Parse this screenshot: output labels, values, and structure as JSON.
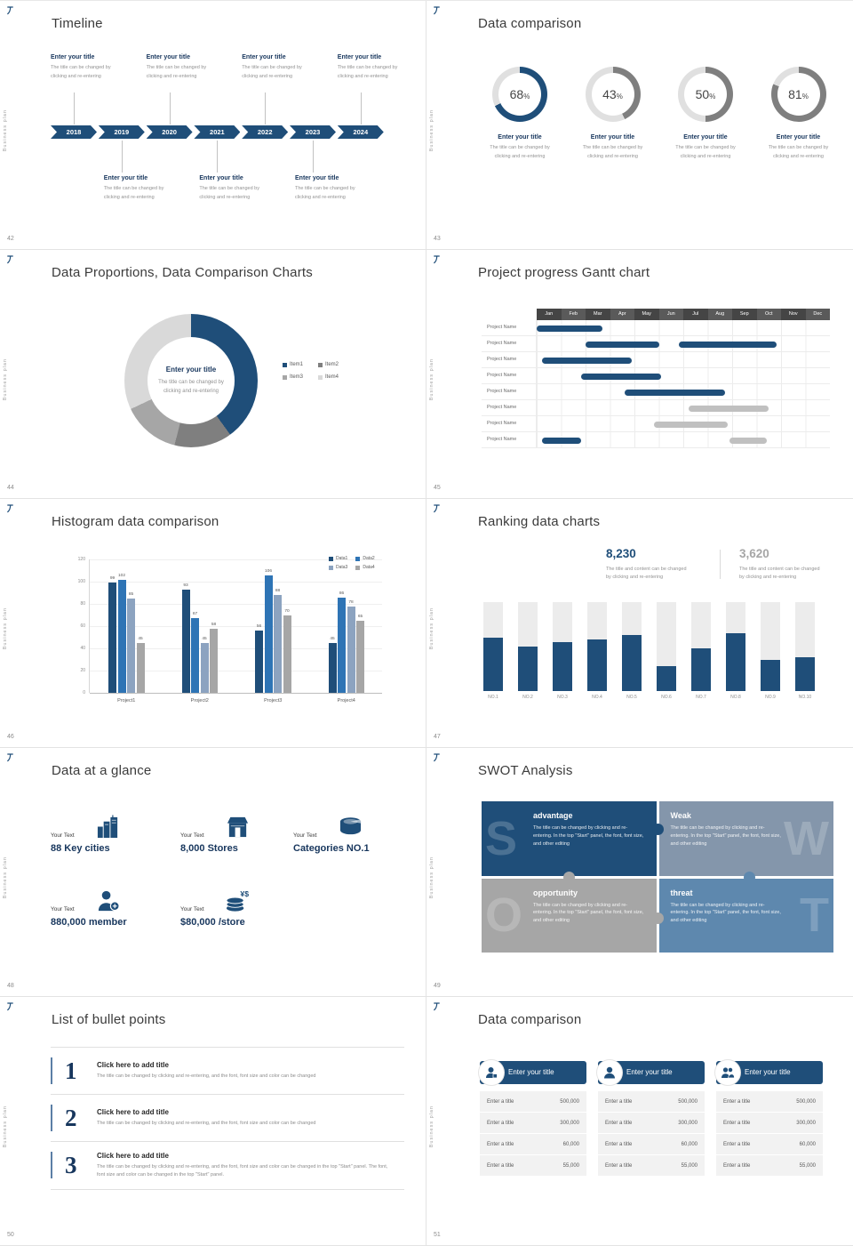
{
  "common": {
    "sidebar_text": "Business plan",
    "entry_title": "Enter your title",
    "entry_desc_line1": "The title can be changed by",
    "entry_desc_line2": "clicking and re-entering",
    "brand_color": "#1F4E79"
  },
  "slides": {
    "timeline": {
      "page": "42",
      "title": "Timeline",
      "years": [
        "2018",
        "2019",
        "2020",
        "2021",
        "2022",
        "2023",
        "2024"
      ],
      "top_indices": [
        0,
        2,
        4,
        6
      ],
      "bottom_indices": [
        1,
        3,
        5
      ]
    },
    "donut_comparison": {
      "page": "43",
      "title": "Data comparison",
      "chart": {
        "type": "donut-set",
        "track_color": "#E0E0E0",
        "items": [
          {
            "value": 68,
            "color": "#1F4E79"
          },
          {
            "value": 43,
            "color": "#7F7F7F"
          },
          {
            "value": 50,
            "color": "#7F7F7F"
          },
          {
            "value": 81,
            "color": "#7F7F7F"
          }
        ]
      }
    },
    "proportions": {
      "page": "44",
      "title": "Data Proportions, Data Comparison Charts",
      "center_title": "Enter your title",
      "chart": {
        "type": "pie",
        "segments": [
          {
            "label": "Item1",
            "value": 40,
            "color": "#1F4E79"
          },
          {
            "label": "Item2",
            "value": 14,
            "color": "#7F7F7F"
          },
          {
            "label": "Item3",
            "value": 14,
            "color": "#A6A6A6"
          },
          {
            "label": "Item4",
            "value": 32,
            "color": "#D9D9D9"
          }
        ]
      }
    },
    "gantt": {
      "page": "45",
      "title": "Project progress Gantt chart",
      "months": [
        "Jan",
        "Feb",
        "Mar",
        "Apr",
        "May",
        "Jun",
        "Jul",
        "Aug",
        "Sep",
        "Oct",
        "Nov",
        "Dec"
      ],
      "row_label": "Project Name",
      "rows": [
        {
          "bars": [
            {
              "start": 0,
              "end": 2.7,
              "color": "#1F4E79"
            }
          ]
        },
        {
          "bars": [
            {
              "start": 2,
              "end": 5,
              "color": "#1F4E79"
            },
            {
              "start": 5.8,
              "end": 9.8,
              "color": "#1F4E79"
            }
          ]
        },
        {
          "bars": [
            {
              "start": 0.2,
              "end": 3.9,
              "color": "#1F4E79"
            }
          ]
        },
        {
          "bars": [
            {
              "start": 1.8,
              "end": 5.1,
              "color": "#1F4E79"
            }
          ]
        },
        {
          "bars": [
            {
              "start": 3.6,
              "end": 7.7,
              "color": "#1F4E79"
            }
          ]
        },
        {
          "bars": [
            {
              "start": 6.2,
              "end": 9.5,
              "color": "#C0C0C0"
            }
          ]
        },
        {
          "bars": [
            {
              "start": 4.8,
              "end": 7.8,
              "color": "#C0C0C0"
            }
          ]
        },
        {
          "bars": [
            {
              "start": 0.2,
              "end": 1.8,
              "color": "#1F4E79"
            },
            {
              "start": 7.9,
              "end": 9.4,
              "color": "#C0C0C0"
            }
          ]
        }
      ]
    },
    "histogram": {
      "page": "46",
      "title": "Histogram data comparison",
      "chart": {
        "type": "bar",
        "categories": [
          "Project1",
          "Project2",
          "Project3",
          "Project4"
        ],
        "series": [
          {
            "name": "Data1",
            "color": "#1F4E79",
            "values": [
              99,
              93,
              56,
              45
            ]
          },
          {
            "name": "Data2",
            "color": "#2E74B5",
            "values": [
              102,
              67,
              106,
              86
            ]
          },
          {
            "name": "Data3",
            "color": "#8CA3C0",
            "values": [
              85,
              45,
              88,
              78
            ]
          },
          {
            "name": "Data4",
            "color": "#A6A6A6",
            "values": [
              45,
              58,
              70,
              65
            ]
          }
        ],
        "ylim": [
          0,
          120
        ],
        "yticks": [
          0,
          20,
          40,
          60,
          80,
          100,
          120
        ]
      }
    },
    "ranking": {
      "page": "47",
      "title": "Ranking data charts",
      "stat1": {
        "value": "8,230",
        "desc1": "The title and content can be changed",
        "desc2": "by clicking and re-entering",
        "color": "#1F4E79"
      },
      "stat2": {
        "value": "3,620",
        "desc1": "The title and content can be changed",
        "desc2": "by clicking and re-entering",
        "color": "#A6A6A6"
      },
      "chart": {
        "type": "bar",
        "categories": [
          "NO.1",
          "NO.2",
          "NO.3",
          "NO.4",
          "NO.5",
          "NO.6",
          "NO.7",
          "NO.8",
          "NO.9",
          "NO.10"
        ],
        "values": [
          60,
          50,
          55,
          58,
          63,
          28,
          48,
          65,
          35,
          38
        ],
        "value_unit": "percent-of-track"
      }
    },
    "glance": {
      "page": "48",
      "title": "Data at a glance",
      "items": [
        {
          "label": "Your Text",
          "value": "88 Key cities",
          "icon": "city-icon"
        },
        {
          "label": "Your Text",
          "value": "8,000 Stores",
          "icon": "store-icon"
        },
        {
          "label": "Your Text",
          "value": "Categories NO.1",
          "icon": "category-icon"
        },
        {
          "label": "Your Text",
          "value": "880,000 member",
          "icon": "member-icon"
        },
        {
          "label": "Your Text",
          "value": "$80,000 /store",
          "icon": "money-icon"
        }
      ]
    },
    "swot": {
      "page": "49",
      "title": "SWOT Analysis",
      "quads": [
        {
          "letter": "S",
          "title": "advantage",
          "color": "#1F4E79",
          "desc": "The title can be changed by clicking and re-entering. In the top \"Start\" panel, the font, font size, and other editing"
        },
        {
          "letter": "W",
          "title": "Weak",
          "color": "#8496AB",
          "desc": "The title can be changed by clicking and re-entering. In the top \"Start\" panel, the font, font size, and other editing"
        },
        {
          "letter": "O",
          "title": "opportunity",
          "color": "#A6A6A6",
          "desc": "The title can be changed by clicking and re-entering. In the top \"Start\" panel, the font, font size, and other editing"
        },
        {
          "letter": "T",
          "title": "threat",
          "color": "#5E88AE",
          "desc": "The title can be changed by clicking and re-entering. In the top \"Start\" panel, the font, font size, and other editing"
        }
      ]
    },
    "bullets": {
      "page": "50",
      "title": "List of bullet points",
      "items": [
        {
          "num": "1",
          "title": "Click here to add title",
          "desc": "The title can be changed by clicking and re-entering, and the font, font size and color can be changed"
        },
        {
          "num": "2",
          "title": "Click here to add title",
          "desc": "The title can be changed by clicking and re-entering, and the font, font size and color can be changed"
        },
        {
          "num": "3",
          "title": "Click here to add title",
          "desc": "The title can be changed by clicking and re-entering, and the font, font size and color can be changed in the top \"Start\" panel. The font, font size and color can be changed in the top \"Start\" panel."
        }
      ]
    },
    "tables": {
      "page": "51",
      "title": "Data comparison",
      "cards": [
        {
          "header": "Enter your title",
          "icon": "person-badge-icon",
          "rows": [
            [
              "Enter a title",
              "500,000"
            ],
            [
              "Enter a title",
              "300,000"
            ],
            [
              "Enter a title",
              "60,000"
            ],
            [
              "Enter a title",
              "55,000"
            ]
          ]
        },
        {
          "header": "Enter your title",
          "icon": "person-icon",
          "rows": [
            [
              "Enter a title",
              "500,000"
            ],
            [
              "Enter a title",
              "300,000"
            ],
            [
              "Enter a title",
              "60,000"
            ],
            [
              "Enter a title",
              "55,000"
            ]
          ]
        },
        {
          "header": "Enter your title",
          "icon": "people-icon",
          "rows": [
            [
              "Enter a title",
              "500,000"
            ],
            [
              "Enter a title",
              "300,000"
            ],
            [
              "Enter a title",
              "60,000"
            ],
            [
              "Enter a title",
              "55,000"
            ]
          ]
        }
      ]
    }
  }
}
